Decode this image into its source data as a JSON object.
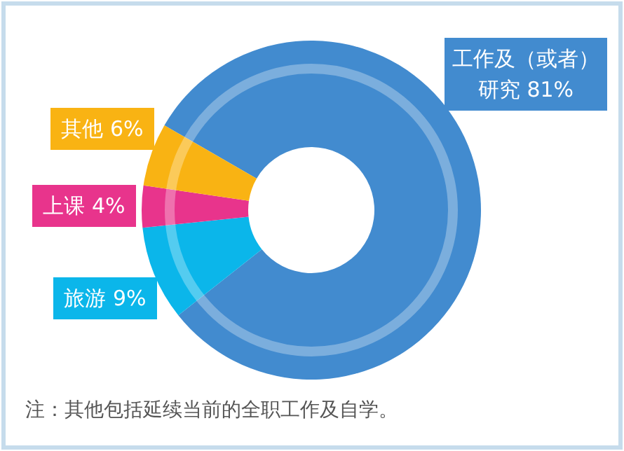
{
  "chart_data": {
    "type": "donut",
    "categories": [
      "工作及（或者）研究",
      "旅游",
      "上课",
      "其他"
    ],
    "values": [
      81,
      9,
      4,
      6
    ],
    "value_labels": [
      "81%",
      "9%",
      "4%",
      "6%"
    ],
    "colors": [
      "#428bcf",
      "#0bb6ea",
      "#e8348c",
      "#f9b313"
    ],
    "annotations": [
      "注：其他包括延续当前的全职工作及自学。"
    ]
  }
}
